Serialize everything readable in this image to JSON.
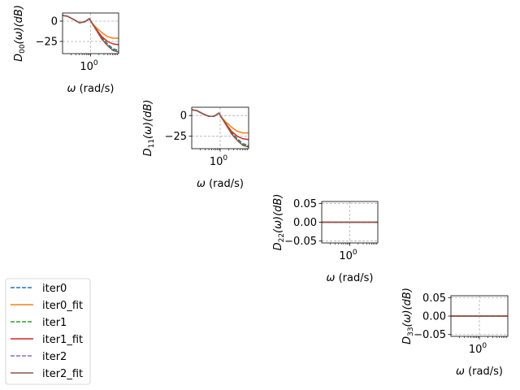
{
  "chart_data": [
    {
      "type": "line",
      "ylabel": "D_00(ω)(dB)",
      "ylabel_parts": [
        "D",
        "00",
        "(ω)(dB)"
      ],
      "xlabel": "ω (rad/s)",
      "xscale": "log",
      "xlim": [
        0.1,
        10
      ],
      "ylim": [
        -40,
        10
      ],
      "xticks": [
        {
          "value": 1,
          "base": "10",
          "exp": "0"
        }
      ],
      "yticks": [
        {
          "value": 0,
          "label": "0"
        },
        {
          "value": -25,
          "label": "−25"
        }
      ],
      "grid": true,
      "series": [
        {
          "name": "iter0",
          "style": "dashed",
          "color": "#1f77b4",
          "x": [
            0.1,
            0.15,
            0.25,
            0.4,
            0.6,
            0.9,
            1.1,
            1.6,
            2.5,
            4,
            6.3,
            10
          ],
          "y": [
            7,
            6,
            2,
            -2,
            -1,
            3,
            -2,
            -10,
            -20,
            -28,
            -34,
            -36
          ]
        },
        {
          "name": "iter0_fit",
          "style": "solid",
          "color": "#ff7f0e",
          "x": [
            0.1,
            0.15,
            0.25,
            0.4,
            0.6,
            0.9,
            1.1,
            1.6,
            2.5,
            4,
            6.3,
            10
          ],
          "y": [
            7,
            6,
            2,
            -2,
            -1,
            3,
            -2,
            -8,
            -14,
            -19,
            -21,
            -21
          ]
        },
        {
          "name": "iter1",
          "style": "dashed",
          "color": "#2ca02c",
          "x": [
            0.1,
            0.15,
            0.25,
            0.4,
            0.6,
            0.9,
            1.1,
            1.6,
            2.5,
            4,
            6.3,
            10
          ],
          "y": [
            7,
            6,
            2,
            -2,
            -1,
            3,
            -2,
            -11,
            -21,
            -29,
            -35,
            -37
          ]
        },
        {
          "name": "iter1_fit",
          "style": "solid",
          "color": "#d62728",
          "x": [
            0.1,
            0.15,
            0.25,
            0.4,
            0.6,
            0.9,
            1.1,
            1.6,
            2.5,
            4,
            6.3,
            10
          ],
          "y": [
            7,
            6,
            2,
            -2,
            -1,
            3,
            -2,
            -10,
            -19,
            -25,
            -28,
            -29
          ]
        },
        {
          "name": "iter2",
          "style": "dashed",
          "color": "#9467bd",
          "x": [
            0.1,
            0.15,
            0.25,
            0.4,
            0.6,
            0.9,
            1.1,
            1.6,
            2.5,
            4,
            6.3,
            10
          ],
          "y": [
            7,
            6,
            2,
            -2,
            -1,
            3,
            -2,
            -11,
            -22,
            -30,
            -36,
            -38
          ]
        },
        {
          "name": "iter2_fit",
          "style": "solid",
          "color": "#8c564b",
          "x": [
            0.1,
            0.15,
            0.25,
            0.4,
            0.6,
            0.9,
            1.1,
            1.6,
            2.5,
            4,
            6.3,
            10
          ],
          "y": [
            7,
            6,
            2,
            -2,
            -1,
            3,
            -2,
            -11,
            -22,
            -30,
            -36,
            -38
          ]
        }
      ]
    },
    {
      "type": "line",
      "ylabel": "D_11(ω)(dB)",
      "ylabel_parts": [
        "D",
        "11",
        "(ω)(dB)"
      ],
      "xlabel": "ω (rad/s)",
      "xscale": "log",
      "xlim": [
        0.1,
        10
      ],
      "ylim": [
        -40,
        10
      ],
      "xticks": [
        {
          "value": 1,
          "base": "10",
          "exp": "0"
        }
      ],
      "yticks": [
        {
          "value": 0,
          "label": "0"
        },
        {
          "value": -25,
          "label": "−25"
        }
      ],
      "grid": true,
      "series": [
        {
          "name": "iter0",
          "style": "dashed",
          "color": "#1f77b4",
          "x": [
            0.1,
            0.15,
            0.25,
            0.4,
            0.6,
            0.9,
            1.1,
            1.6,
            2.5,
            4,
            6.3,
            10
          ],
          "y": [
            7,
            6,
            2,
            -1,
            -1,
            3,
            -2,
            -10,
            -20,
            -28,
            -34,
            -36
          ]
        },
        {
          "name": "iter0_fit",
          "style": "solid",
          "color": "#ff7f0e",
          "x": [
            0.1,
            0.15,
            0.25,
            0.4,
            0.6,
            0.9,
            1.1,
            1.6,
            2.5,
            4,
            6.3,
            10
          ],
          "y": [
            7,
            6,
            2,
            -1,
            -1,
            3,
            -2,
            -8,
            -14,
            -19,
            -21,
            -21
          ]
        },
        {
          "name": "iter1",
          "style": "dashed",
          "color": "#2ca02c",
          "x": [
            0.1,
            0.15,
            0.25,
            0.4,
            0.6,
            0.9,
            1.1,
            1.6,
            2.5,
            4,
            6.3,
            10
          ],
          "y": [
            7,
            6,
            2,
            -1,
            -1,
            3,
            -2,
            -11,
            -21,
            -29,
            -35,
            -37
          ]
        },
        {
          "name": "iter1_fit",
          "style": "solid",
          "color": "#d62728",
          "x": [
            0.1,
            0.15,
            0.25,
            0.4,
            0.6,
            0.9,
            1.1,
            1.6,
            2.5,
            4,
            6.3,
            10
          ],
          "y": [
            7,
            6,
            2,
            -1,
            -1,
            3,
            -2,
            -10,
            -19,
            -25,
            -28,
            -29
          ]
        },
        {
          "name": "iter2",
          "style": "dashed",
          "color": "#9467bd",
          "x": [
            0.1,
            0.15,
            0.25,
            0.4,
            0.6,
            0.9,
            1.1,
            1.6,
            2.5,
            4,
            6.3,
            10
          ],
          "y": [
            7,
            6,
            2,
            -1,
            -1,
            3,
            -2,
            -11,
            -22,
            -30,
            -36,
            -38
          ]
        },
        {
          "name": "iter2_fit",
          "style": "solid",
          "color": "#8c564b",
          "x": [
            0.1,
            0.15,
            0.25,
            0.4,
            0.6,
            0.9,
            1.1,
            1.6,
            2.5,
            4,
            6.3,
            10
          ],
          "y": [
            7,
            6,
            2,
            -1,
            -1,
            3,
            -2,
            -11,
            -22,
            -30,
            -36,
            -38
          ]
        }
      ]
    },
    {
      "type": "line",
      "ylabel": "D_22(ω)(dB)",
      "ylabel_parts": [
        "D",
        "22",
        "(ω)(dB)"
      ],
      "xlabel": "ω (rad/s)",
      "xscale": "log",
      "xlim": [
        0.1,
        10
      ],
      "ylim": [
        -0.055,
        0.055
      ],
      "xticks": [
        {
          "value": 1,
          "base": "10",
          "exp": "0"
        }
      ],
      "yticks": [
        {
          "value": 0.05,
          "label": "0.05"
        },
        {
          "value": 0,
          "label": "0.00"
        },
        {
          "value": -0.05,
          "label": "−0.05"
        }
      ],
      "grid": true,
      "series": [
        {
          "name": "iter0",
          "style": "dashed",
          "color": "#1f77b4",
          "x": [
            0.1,
            10
          ],
          "y": [
            0,
            0
          ]
        },
        {
          "name": "iter0_fit",
          "style": "solid",
          "color": "#ff7f0e",
          "x": [
            0.1,
            10
          ],
          "y": [
            0,
            0
          ]
        },
        {
          "name": "iter1",
          "style": "dashed",
          "color": "#2ca02c",
          "x": [
            0.1,
            10
          ],
          "y": [
            0,
            0
          ]
        },
        {
          "name": "iter1_fit",
          "style": "solid",
          "color": "#d62728",
          "x": [
            0.1,
            10
          ],
          "y": [
            0,
            0
          ]
        },
        {
          "name": "iter2",
          "style": "dashed",
          "color": "#9467bd",
          "x": [
            0.1,
            10
          ],
          "y": [
            0,
            0
          ]
        },
        {
          "name": "iter2_fit",
          "style": "solid",
          "color": "#8c564b",
          "x": [
            0.1,
            10
          ],
          "y": [
            0,
            0
          ]
        }
      ]
    },
    {
      "type": "line",
      "ylabel": "D_33(ω)(dB)",
      "ylabel_parts": [
        "D",
        "33",
        "(ω)(dB)"
      ],
      "xlabel": "ω (rad/s)",
      "xscale": "log",
      "xlim": [
        0.1,
        10
      ],
      "ylim": [
        -0.055,
        0.055
      ],
      "xticks": [
        {
          "value": 1,
          "base": "10",
          "exp": "0"
        }
      ],
      "yticks": [
        {
          "value": 0.05,
          "label": "0.05"
        },
        {
          "value": 0,
          "label": "0.00"
        },
        {
          "value": -0.05,
          "label": "−0.05"
        }
      ],
      "grid": true,
      "series": [
        {
          "name": "iter0",
          "style": "dashed",
          "color": "#1f77b4",
          "x": [
            0.1,
            10
          ],
          "y": [
            0,
            0
          ]
        },
        {
          "name": "iter0_fit",
          "style": "solid",
          "color": "#ff7f0e",
          "x": [
            0.1,
            10
          ],
          "y": [
            0,
            0
          ]
        },
        {
          "name": "iter1",
          "style": "dashed",
          "color": "#2ca02c",
          "x": [
            0.1,
            10
          ],
          "y": [
            0,
            0
          ]
        },
        {
          "name": "iter1_fit",
          "style": "solid",
          "color": "#d62728",
          "x": [
            0.1,
            10
          ],
          "y": [
            0,
            0
          ]
        },
        {
          "name": "iter2",
          "style": "dashed",
          "color": "#9467bd",
          "x": [
            0.1,
            10
          ],
          "y": [
            0,
            0
          ]
        },
        {
          "name": "iter2_fit",
          "style": "solid",
          "color": "#8c564b",
          "x": [
            0.1,
            10
          ],
          "y": [
            0,
            0
          ]
        }
      ]
    }
  ],
  "legend": {
    "placement": "bottom-left",
    "entries": [
      {
        "label": "iter0",
        "style": "dashed",
        "color": "#1f77b4"
      },
      {
        "label": "iter0_fit",
        "style": "solid",
        "color": "#ff7f0e"
      },
      {
        "label": "iter1",
        "style": "dashed",
        "color": "#2ca02c"
      },
      {
        "label": "iter1_fit",
        "style": "solid",
        "color": "#d62728"
      },
      {
        "label": "iter2",
        "style": "dashed",
        "color": "#9467bd"
      },
      {
        "label": "iter2_fit",
        "style": "solid",
        "color": "#8c564b"
      }
    ]
  }
}
